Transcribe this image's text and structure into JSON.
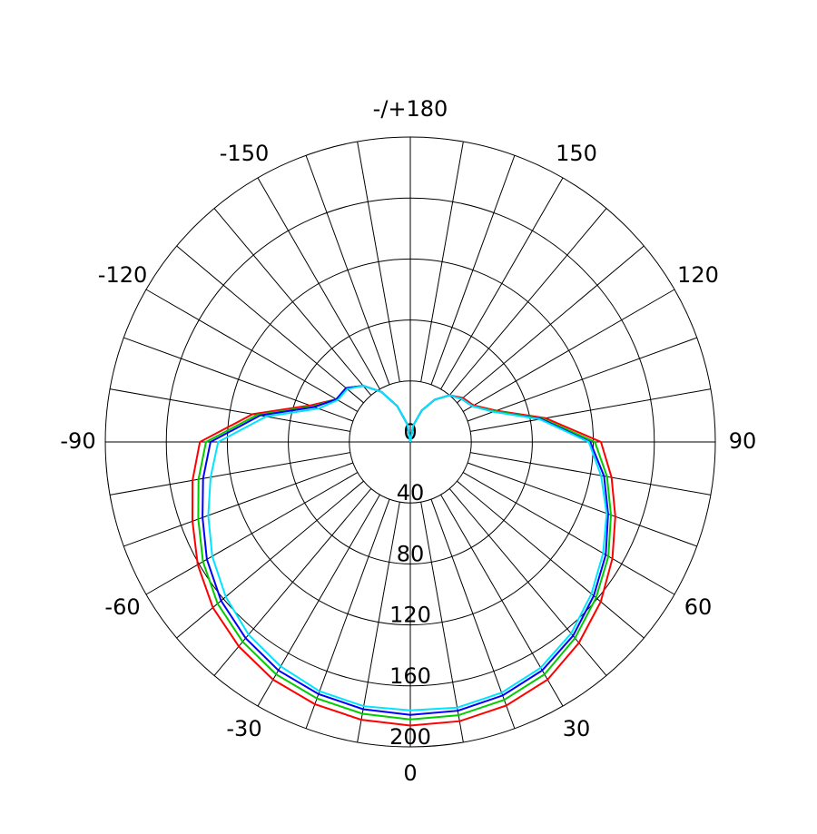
{
  "chart_data": {
    "type": "polar",
    "theta": [
      -180,
      -170,
      -160,
      -150,
      -140,
      -130,
      -120,
      -110,
      -100,
      -90,
      -80,
      -70,
      -60,
      -50,
      -40,
      -30,
      -20,
      -10,
      0,
      10,
      20,
      30,
      40,
      50,
      60,
      70,
      80,
      90,
      100,
      110,
      120,
      130,
      140,
      150,
      160,
      170,
      180
    ],
    "series": [
      {
        "color": "#ff0000",
        "values": [
          0,
          12,
          25,
          38,
          48,
          55,
          56,
          70,
          105,
          138,
          145,
          152,
          161,
          169,
          175,
          180,
          183,
          185,
          186,
          186,
          184,
          180,
          172,
          163,
          153,
          143,
          134,
          125,
          90,
          60,
          48,
          45,
          40,
          32,
          22,
          11,
          0
        ]
      },
      {
        "color": "#00cc00",
        "values": [
          0,
          12,
          25,
          38,
          48,
          55,
          56,
          68,
          102,
          134,
          141,
          148,
          157,
          165,
          171,
          176,
          179,
          181,
          182,
          182,
          180,
          176,
          168,
          159,
          150,
          140,
          131,
          121,
          88,
          59,
          47,
          44,
          40,
          32,
          22,
          11,
          0
        ]
      },
      {
        "color": "#0000ff",
        "values": [
          0,
          12,
          25,
          38,
          48,
          55,
          56,
          67,
          100,
          131,
          138,
          145,
          154,
          162,
          168,
          173,
          176,
          178,
          179,
          179,
          177,
          173,
          166,
          157,
          148,
          138,
          129,
          118,
          87,
          58,
          47,
          44,
          40,
          32,
          22,
          11,
          0
        ]
      },
      {
        "color": "#00e5ff",
        "values": [
          0,
          12,
          25,
          38,
          48,
          54,
          55,
          64,
          96,
          126,
          133,
          141,
          150,
          158,
          165,
          170,
          174,
          176,
          176,
          177,
          175,
          171,
          164,
          155,
          146,
          137,
          127,
          117,
          86,
          58,
          47,
          44,
          40,
          32,
          22,
          11,
          0
        ]
      }
    ],
    "rlim": [
      0,
      200
    ],
    "rticks": [
      0,
      40,
      80,
      120,
      160,
      200
    ],
    "thetaticks": [
      {
        "value": 180,
        "label": "-/+180"
      },
      -150,
      -120,
      -90,
      -60,
      -30,
      0,
      30,
      60,
      90,
      120,
      150
    ],
    "grid": true
  }
}
